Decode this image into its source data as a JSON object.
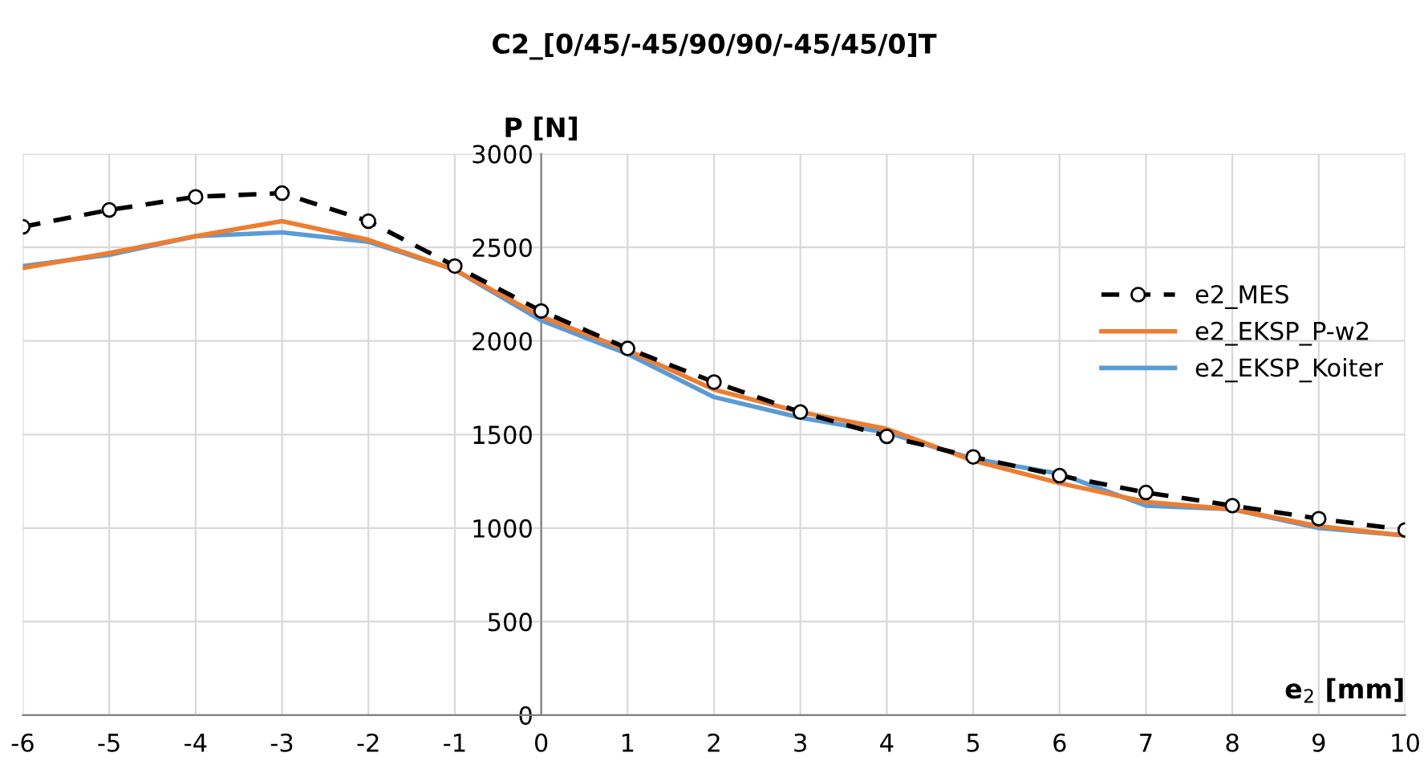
{
  "chart_data": {
    "type": "line",
    "title": "C2_[0/45/-45/90/90/-45/45/0]T",
    "xlabel": "e$_{2}$ [mm]",
    "ylabel": "P [N]",
    "x": [
      -6,
      -5,
      -4,
      -3,
      -2,
      -1,
      0,
      1,
      2,
      3,
      4,
      5,
      6,
      7,
      8,
      9,
      10
    ],
    "series": [
      {
        "name": "e2_MES",
        "color": "#000000",
        "line_style": "dashed",
        "marker": "circle",
        "values": [
          2610,
          2700,
          2770,
          2790,
          2640,
          2400,
          2160,
          1960,
          1780,
          1620,
          1490,
          1380,
          1280,
          1190,
          1120,
          1050,
          990
        ]
      },
      {
        "name": "e2_EKSP_P-w2",
        "color": "#ed7d31",
        "line_style": "solid",
        "marker": "none",
        "values": [
          2390,
          2470,
          2560,
          2640,
          2540,
          2380,
          2130,
          1950,
          1740,
          1620,
          1530,
          1360,
          1240,
          1140,
          1100,
          1010,
          960
        ]
      },
      {
        "name": "e2_EKSP_Koiter",
        "color": "#5b9bd5",
        "line_style": "solid",
        "marker": "none",
        "values": [
          2400,
          2460,
          2560,
          2580,
          2530,
          2380,
          2110,
          1930,
          1700,
          1590,
          1510,
          1370,
          1290,
          1120,
          1100,
          1000,
          960
        ]
      }
    ],
    "xlim": [
      -6,
      10
    ],
    "ylim": [
      0,
      3000
    ],
    "xticks": [
      -6,
      -5,
      -4,
      -3,
      -2,
      -1,
      0,
      1,
      2,
      3,
      4,
      5,
      6,
      7,
      8,
      9,
      10
    ],
    "yticks": [
      0,
      500,
      1000,
      1500,
      2000,
      2500,
      3000
    ],
    "grid": true,
    "legend": "right"
  }
}
